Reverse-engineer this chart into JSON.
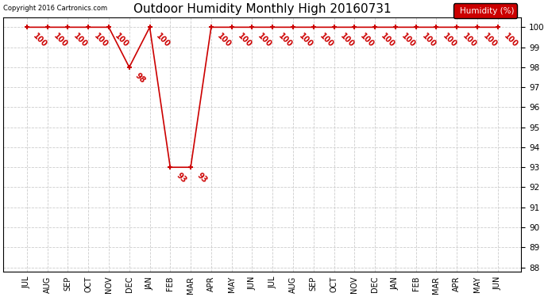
{
  "title": "Outdoor Humidity Monthly High 20160731",
  "x_labels": [
    "JUL",
    "AUG",
    "SEP",
    "OCT",
    "NOV",
    "DEC",
    "JAN",
    "FEB",
    "MAR",
    "APR",
    "MAY",
    "JUN",
    "JUL",
    "AUG",
    "SEP",
    "OCT",
    "NOV",
    "DEC",
    "JAN",
    "FEB",
    "MAR",
    "APR",
    "MAY",
    "JUN"
  ],
  "y_values": [
    100,
    100,
    100,
    100,
    100,
    98,
    100,
    93,
    93,
    100,
    100,
    100,
    100,
    100,
    100,
    100,
    100,
    100,
    100,
    100,
    100,
    100,
    100,
    100
  ],
  "line_color": "#cc0000",
  "marker": "+",
  "ylim_min": 88,
  "ylim_max": 100,
  "yticks": [
    88,
    89,
    90,
    91,
    92,
    93,
    94,
    95,
    96,
    97,
    98,
    99,
    100
  ],
  "ylabel": "Humidity (%)",
  "copyright_text": "Copyright 2016 Cartronics.com",
  "background_color": "#ffffff",
  "grid_color": "#cccccc",
  "annotation_color": "#cc0000",
  "legend_bg": "#cc0000",
  "legend_text_color": "#ffffff",
  "annotation_fontsize": 7,
  "annotation_rotation": -45
}
